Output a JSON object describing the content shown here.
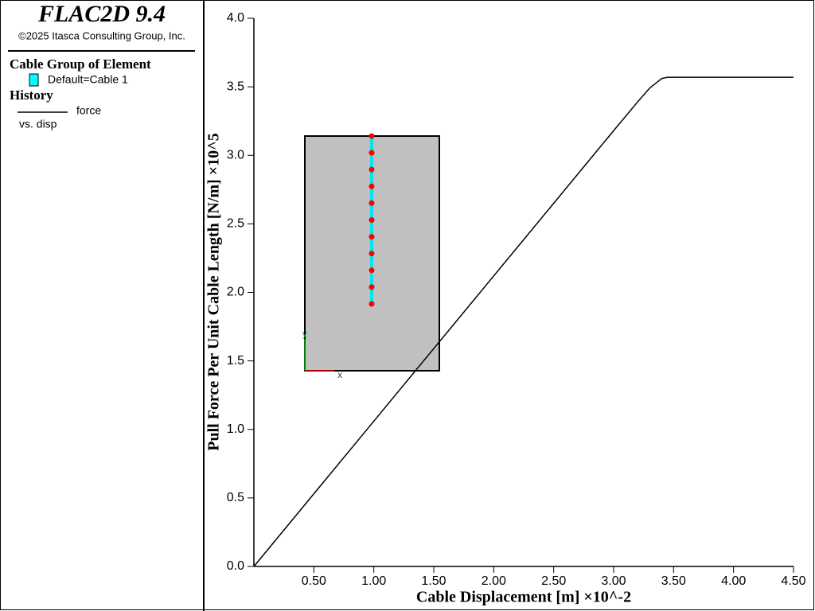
{
  "panel": {
    "product": "FLAC2D 9.4",
    "copyright": "©2025 Itasca Consulting Group, Inc.",
    "group_heading": "Cable Group of Element",
    "group_item": "Default=Cable 1",
    "history_heading": "History",
    "history_versus": "vs. disp"
  },
  "inset": {
    "axis_x": "x",
    "axis_y": "y"
  },
  "chart_data": {
    "type": "line",
    "x_label": "Cable Displacement [m] ×10^-2",
    "y_label": "Pull Force Per Unit Cable Length [N/m] ×10^5",
    "x": [
      0,
      1,
      2,
      3,
      3.2,
      3.3,
      3.4,
      3.45,
      4.5
    ],
    "series": [
      {
        "name": "force",
        "color": "#000000",
        "values": [
          0,
          1.06,
          2.12,
          3.18,
          3.39,
          3.49,
          3.56,
          3.57,
          3.57
        ]
      }
    ],
    "xlim": [
      0,
      4.5
    ],
    "xticks": [
      {
        "value": 0.5,
        "label": "0.50"
      },
      {
        "value": 1,
        "label": "1.00"
      },
      {
        "value": 1.5,
        "label": "1.50"
      },
      {
        "value": 2,
        "label": "2.00"
      },
      {
        "value": 2.5,
        "label": "2.50"
      },
      {
        "value": 3,
        "label": "3.00"
      },
      {
        "value": 3.5,
        "label": "3.50"
      },
      {
        "value": 4,
        "label": "4.00"
      },
      {
        "value": 4.5,
        "label": "4.50"
      }
    ],
    "ylim": [
      0,
      4
    ],
    "yticks": [
      {
        "value": 0,
        "label": "0.0"
      },
      {
        "value": 0.5,
        "label": "0.5"
      },
      {
        "value": 1,
        "label": "1.0"
      },
      {
        "value": 1.5,
        "label": "1.5"
      },
      {
        "value": 2,
        "label": "2.0"
      },
      {
        "value": 2.5,
        "label": "2.5"
      },
      {
        "value": 3,
        "label": "3.0"
      },
      {
        "value": 3.5,
        "label": "3.5"
      },
      {
        "value": 4,
        "label": "4.0"
      }
    ]
  }
}
